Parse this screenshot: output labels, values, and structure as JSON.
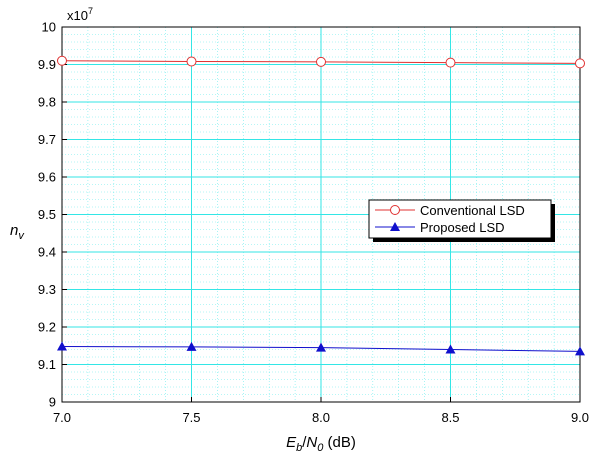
{
  "chart_data": {
    "type": "line",
    "x": [
      7.0,
      7.5,
      8.0,
      8.5,
      9.0
    ],
    "x_tick_labels": [
      "7.0",
      "7.5",
      "8.0",
      "8.5",
      "9.0"
    ],
    "xlim": [
      7.0,
      9.0
    ],
    "y_tick_values": [
      9.0,
      9.1,
      9.2,
      9.3,
      9.4,
      9.5,
      9.6,
      9.7,
      9.8,
      9.9,
      10.0
    ],
    "y_tick_labels": [
      "9",
      "9.1",
      "9.2",
      "9.3",
      "9.4",
      "9.5",
      "9.6",
      "9.7",
      "9.8",
      "9.9",
      "10"
    ],
    "ylim": [
      9.0,
      10.0
    ],
    "y_multiplier": {
      "base": "x10",
      "exponent": "7"
    },
    "xlabel": {
      "e": "E",
      "b": "b",
      "slash": "/",
      "n": "N",
      "zero": "0",
      "unit": " (dB)"
    },
    "ylabel": {
      "n": "n",
      "v": "v"
    },
    "grid": true,
    "legend_position": "center-right",
    "series": [
      {
        "name": "Conventional LSD",
        "values": [
          9.91,
          9.908,
          9.907,
          9.905,
          9.903
        ],
        "color": "#e03030",
        "marker": "circle"
      },
      {
        "name": "Proposed LSD",
        "values": [
          9.148,
          9.147,
          9.145,
          9.14,
          9.135
        ],
        "color": "#1010cc",
        "marker": "triangle"
      }
    ],
    "grid_color": "#33e6e6"
  }
}
